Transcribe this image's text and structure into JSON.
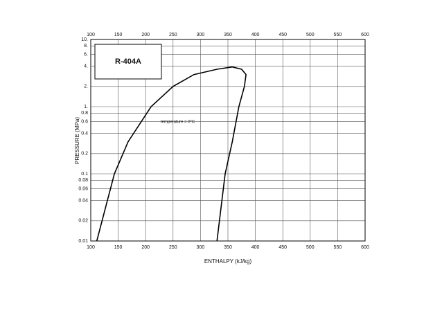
{
  "chart_data": {
    "type": "line",
    "title": "R-404A",
    "x_label": "ENTHALPY (kJ/kg)",
    "y_label": "PRESSURE (MPa)",
    "annotation": "temperature = 0°C",
    "xlim": [
      100,
      600
    ],
    "xticks": [
      100,
      150,
      200,
      250,
      300,
      350,
      400,
      450,
      500,
      550,
      600
    ],
    "ylim": [
      0.01,
      10
    ],
    "yticks": [
      0.01,
      0.02,
      0.04,
      0.06,
      0.08,
      0.1,
      0.2,
      0.4,
      0.6,
      0.8,
      {
        "value": 1,
        "label": "1."
      },
      {
        "value": 2,
        "label": "2."
      },
      {
        "value": 4,
        "label": "4."
      },
      {
        "value": 6,
        "label": "6."
      },
      {
        "value": 8,
        "label": "8."
      },
      {
        "value": 10,
        "label": "10."
      }
    ],
    "yscale": "log",
    "grid": true,
    "series": [
      {
        "color": "#000000",
        "x": [
          111,
          143,
          168,
          210,
          250,
          288,
          330,
          358
        ],
        "values": [
          0.01,
          0.1,
          0.3,
          1,
          2,
          3,
          3.6,
          3.9
        ]
      },
      {
        "color": "#000000",
        "x": [
          330,
          345,
          358,
          370,
          380,
          383,
          375,
          358
        ],
        "values": [
          0.01,
          0.1,
          0.3,
          1,
          2,
          3,
          3.6,
          3.9
        ]
      }
    ]
  }
}
